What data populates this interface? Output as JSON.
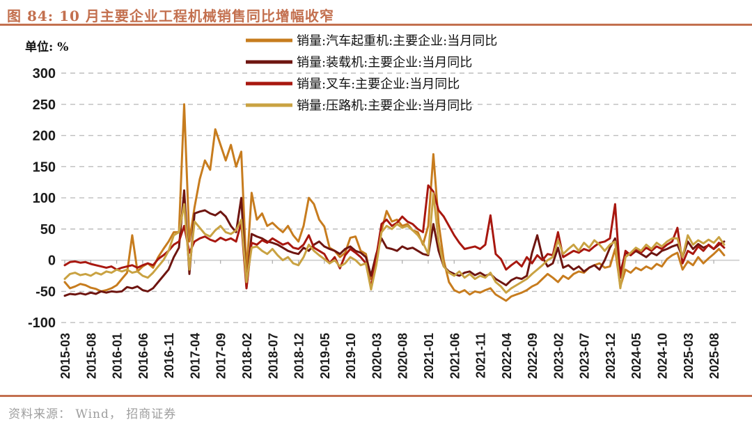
{
  "header": {
    "title": "图 84:  10 月主要企业工程机械销售同比增幅收窄"
  },
  "footer": {
    "source": "资料来源：  Wind，  招商证券"
  },
  "theme": {
    "accent": "#C3704F",
    "grid": "#BDBDBD",
    "zero_line": "#CCCCCC",
    "tick": "#AAAAAA",
    "text": "#1B1B1B",
    "source_text": "#9E9E9E"
  },
  "chart_data": {
    "type": "line",
    "unit_label": "单位:  %",
    "ylim": [
      -100,
      300
    ],
    "y_ticks": [
      300,
      250,
      200,
      150,
      100,
      50,
      0,
      -50,
      -100
    ],
    "grid": "horizontal dashed, solid zero axis with ticks",
    "legend_position": "top-center",
    "x_months_start": "2015-03",
    "x_months_end": "2025-10",
    "x_points": 128,
    "x_tick_every": 5,
    "x_tick_labels": [
      "2015-03",
      "2015-08",
      "2016-01",
      "2016-06",
      "2016-11",
      "2017-04",
      "2017-09",
      "2018-02",
      "2018-07",
      "2018-12",
      "2019-05",
      "2019-10",
      "2020-03",
      "2020-08",
      "2021-01",
      "2021-06",
      "2021-11",
      "2022-04",
      "2022-09",
      "2023-02",
      "2023-07",
      "2023-12",
      "2024-05",
      "2024-10",
      "2025-03",
      "2025-08"
    ],
    "series": [
      {
        "name": "销量:汽车起重机:主要企业:当月同比",
        "color": "#C77C1E",
        "values": [
          -35,
          -45,
          -42,
          -38,
          -40,
          -44,
          -46,
          -50,
          -48,
          -45,
          -40,
          -30,
          -20,
          40,
          -18,
          -10,
          -5,
          -12,
          5,
          18,
          30,
          45,
          45,
          250,
          30,
          85,
          130,
          160,
          145,
          210,
          185,
          160,
          185,
          150,
          174,
          -20,
          108,
          65,
          75,
          55,
          60,
          52,
          45,
          55,
          40,
          30,
          55,
          100,
          90,
          65,
          54,
          20,
          15,
          5,
          12,
          36,
          38,
          15,
          10,
          -30,
          8,
          48,
          79,
          62,
          65,
          55,
          58,
          48,
          45,
          25,
          55,
          170,
          60,
          0,
          -35,
          -48,
          -52,
          -48,
          -55,
          -50,
          -52,
          -48,
          -45,
          -55,
          -60,
          -65,
          -58,
          -55,
          -52,
          -48,
          -42,
          -38,
          -30,
          -22,
          -28,
          -35,
          -25,
          -30,
          -22,
          -18,
          -20,
          -12,
          -8,
          -5,
          -12,
          -10,
          18,
          -42,
          -15,
          -20,
          -12,
          -16,
          -10,
          -14,
          -6,
          -10,
          2,
          8,
          12,
          -15,
          -2,
          -8,
          5,
          -5,
          3,
          10,
          18,
          8
        ]
      },
      {
        "name": "销量:装载机:主要企业:当月同比",
        "color": "#6E1510",
        "values": [
          -57,
          -54,
          -55,
          -53,
          -55,
          -52,
          -54,
          -50,
          -52,
          -50,
          -51,
          -50,
          -43,
          -45,
          -42,
          -48,
          -50,
          -45,
          -35,
          -25,
          -15,
          5,
          20,
          112,
          -22,
          75,
          78,
          80,
          75,
          72,
          78,
          70,
          55,
          45,
          100,
          -45,
          42,
          38,
          35,
          30,
          28,
          25,
          20,
          15,
          12,
          10,
          20,
          15,
          25,
          30,
          22,
          18,
          15,
          10,
          18,
          22,
          15,
          12,
          5,
          -25,
          10,
          35,
          20,
          18,
          15,
          22,
          18,
          20,
          15,
          10,
          8,
          58,
          15,
          -10,
          -18,
          -22,
          -25,
          -20,
          -18,
          -24,
          -20,
          -25,
          -22,
          -30,
          -35,
          -40,
          -32,
          -28,
          -30,
          -25,
          12,
          40,
          5,
          -10,
          -5,
          20,
          -12,
          -8,
          -15,
          -10,
          -18,
          -12,
          -8,
          -15,
          0,
          20,
          35,
          -20,
          12,
          8,
          15,
          10,
          5,
          12,
          8,
          15,
          18,
          22,
          25,
          5,
          30,
          18,
          26,
          20,
          24,
          18,
          25,
          30
        ]
      },
      {
        "name": "销量:叉车:主要企业:当月同比",
        "color": "#A8170F",
        "values": [
          -8,
          -3,
          -2,
          -4,
          -3,
          -6,
          -8,
          -10,
          -12,
          -10,
          -15,
          -12,
          -10,
          -8,
          -12,
          -8,
          -5,
          -8,
          2,
          8,
          15,
          25,
          30,
          55,
          12,
          30,
          35,
          38,
          33,
          30,
          36,
          32,
          35,
          30,
          60,
          -45,
          28,
          25,
          32,
          28,
          35,
          30,
          25,
          28,
          20,
          18,
          25,
          40,
          20,
          15,
          10,
          -5,
          5,
          -13,
          8,
          18,
          12,
          5,
          -5,
          -44,
          5,
          58,
          65,
          55,
          60,
          70,
          62,
          58,
          50,
          45,
          120,
          110,
          80,
          70,
          55,
          40,
          28,
          18,
          20,
          22,
          18,
          25,
          72,
          10,
          2,
          -15,
          -8,
          -2,
          -10,
          5,
          -5,
          8,
          0,
          10,
          8,
          45,
          5,
          10,
          15,
          12,
          18,
          15,
          22,
          28,
          30,
          35,
          90,
          -28,
          15,
          8,
          18,
          12,
          20,
          15,
          22,
          18,
          25,
          30,
          52,
          -5,
          15,
          10,
          22,
          15,
          25,
          18,
          28,
          20
        ]
      },
      {
        "name": "销量:压路机:主要企业:当月同比",
        "color": "#C9A242",
        "values": [
          -30,
          -22,
          -20,
          -24,
          -22,
          -25,
          -20,
          -23,
          -18,
          -20,
          -15,
          -18,
          -15,
          -20,
          -18,
          -25,
          -28,
          -20,
          -10,
          0,
          15,
          40,
          45,
          90,
          -15,
          62,
          52,
          42,
          38,
          48,
          55,
          45,
          42,
          48,
          65,
          -35,
          20,
          22,
          15,
          10,
          18,
          8,
          0,
          5,
          -5,
          -8,
          5,
          25,
          15,
          8,
          2,
          -5,
          0,
          -10,
          -5,
          5,
          0,
          -8,
          -5,
          -47,
          -8,
          45,
          55,
          50,
          58,
          52,
          55,
          48,
          40,
          28,
          10,
          107,
          30,
          -10,
          -20,
          -25,
          -18,
          -28,
          -22,
          -30,
          -25,
          -28,
          -20,
          -35,
          -42,
          -52,
          -45,
          -40,
          -35,
          -30,
          -22,
          -15,
          -8,
          0,
          5,
          32,
          10,
          18,
          25,
          15,
          28,
          20,
          32,
          25,
          15,
          25,
          30,
          -45,
          5,
          12,
          20,
          15,
          25,
          18,
          28,
          22,
          30,
          35,
          35,
          5,
          40,
          25,
          32,
          27,
          33,
          28,
          37,
          25
        ]
      }
    ]
  }
}
